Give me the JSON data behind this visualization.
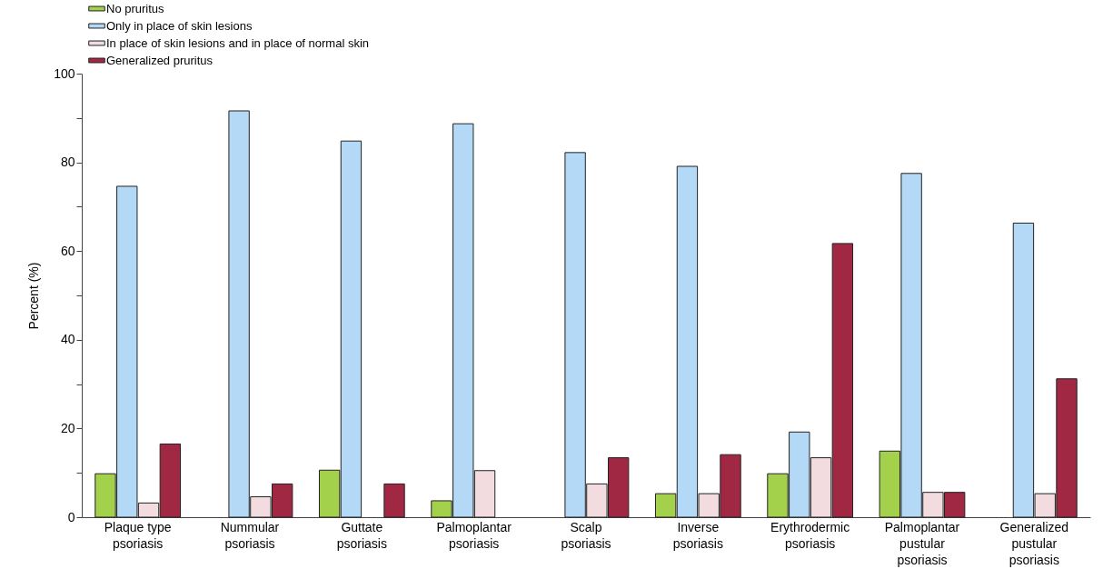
{
  "chart_data": {
    "type": "bar",
    "ylabel": "Percent (%)",
    "categories": [
      "Plaque type\npsoriasis",
      "Nummular\npsoriasis",
      "Guttate\npsoriasis",
      "Palmoplantar\npsoriasis",
      "Scalp\npsoriasis",
      "Inverse\npsoriasis",
      "Erythrodermic\npsoriasis",
      "Palmoplantar\npustular\npsoriasis",
      "Generalized\npustular\npsoriasis"
    ],
    "series": [
      {
        "name": "No pruritus",
        "color": "#a3d14c",
        "values": [
          9.8,
          null,
          10.6,
          3.7,
          null,
          5.3,
          9.8,
          14.9,
          null
        ]
      },
      {
        "name": "Only in place of skin lesions",
        "color": "#b3d9f7",
        "values": [
          74.6,
          91.6,
          84.8,
          88.7,
          82.2,
          79.1,
          19.2,
          77.5,
          66.3
        ]
      },
      {
        "name": "In place of skin lesions and in place of normal skin",
        "color": "#f2dcdf",
        "values": [
          3.2,
          4.6,
          null,
          10.5,
          7.5,
          5.3,
          13.4,
          5.6,
          5.3
        ]
      },
      {
        "name": "Generalized pruritus",
        "color": "#a12843",
        "values": [
          16.5,
          7.5,
          7.5,
          null,
          13.4,
          14.1,
          61.7,
          5.6,
          31.2
        ]
      }
    ],
    "ylim": [
      0,
      100
    ],
    "yticks": [
      0,
      {
        "value": 10,
        "label": null
      },
      20,
      {
        "value": 30,
        "label": null
      },
      40,
      {
        "value": 50,
        "label": null
      },
      60,
      {
        "value": 70,
        "label": null
      },
      80,
      {
        "value": 90,
        "label": null
      },
      100
    ],
    "grid": false,
    "legend": "top left"
  }
}
